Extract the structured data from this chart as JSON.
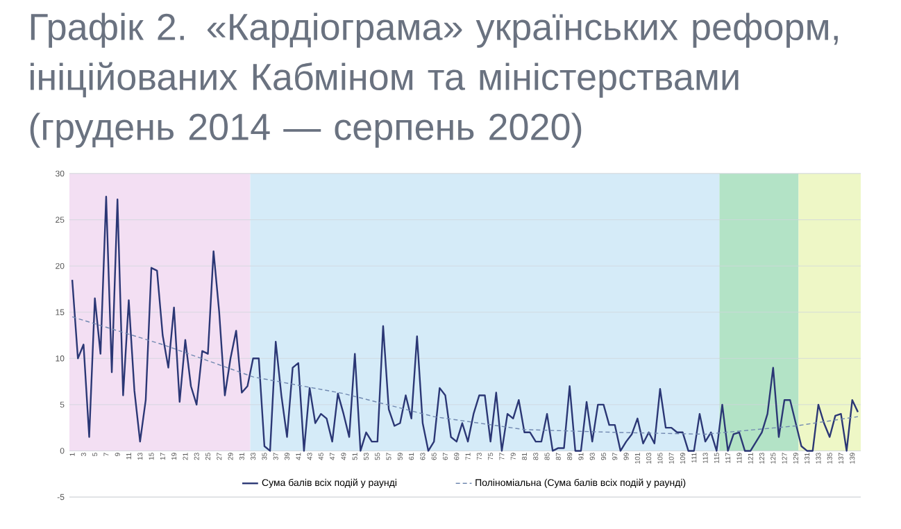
{
  "chart_data": {
    "type": "line",
    "title": "Графік 2. «Кардіограма» українських реформ, ініційованих Кабміном та міністерствами (грудень 2014 — серпень 2020)",
    "x": [
      1,
      2,
      3,
      4,
      5,
      6,
      7,
      8,
      9,
      10,
      11,
      12,
      13,
      14,
      15,
      16,
      17,
      18,
      19,
      20,
      21,
      22,
      23,
      24,
      25,
      26,
      27,
      28,
      29,
      30,
      31,
      32,
      33,
      34,
      35,
      36,
      37,
      38,
      39,
      40,
      41,
      42,
      43,
      44,
      45,
      46,
      47,
      48,
      49,
      50,
      51,
      52,
      53,
      54,
      55,
      56,
      57,
      58,
      59,
      60,
      61,
      62,
      63,
      64,
      65,
      66,
      67,
      68,
      69,
      70,
      71,
      72,
      73,
      74,
      75,
      76,
      77,
      78,
      79,
      80,
      81,
      82,
      83,
      84,
      85,
      86,
      87,
      88,
      89,
      90,
      91,
      92,
      93,
      94,
      95,
      96,
      97,
      98,
      99,
      100,
      101,
      102,
      103,
      104,
      105,
      106,
      107,
      108,
      109,
      110,
      111,
      112,
      113,
      114,
      115,
      116,
      117,
      118,
      119,
      120,
      121,
      122,
      123,
      124,
      125,
      126,
      127,
      128,
      129,
      130,
      131,
      132,
      133,
      134,
      135,
      136,
      137,
      138,
      139,
      140
    ],
    "series": [
      {
        "name": "Сума балів всіх подій у раунді",
        "color": "#2b3775",
        "values": [
          18.5,
          10,
          11.5,
          1.5,
          16.5,
          10.5,
          27.5,
          8.5,
          27.2,
          6,
          16.3,
          6.5,
          1,
          5.5,
          19.8,
          19.5,
          12.5,
          9,
          15.5,
          5.3,
          12,
          7,
          5,
          10.8,
          10.5,
          21.6,
          15,
          6,
          10,
          13,
          6.3,
          7,
          10,
          10,
          0.5,
          0,
          11.8,
          6,
          1.5,
          9,
          9.5,
          0,
          6.8,
          3,
          4,
          3.5,
          1,
          6.2,
          4,
          1.5,
          10.5,
          0,
          2,
          1,
          1,
          13.5,
          4.5,
          2.7,
          3,
          6,
          3.5,
          12.4,
          3,
          0,
          1,
          6.8,
          6,
          1.5,
          1,
          3,
          1,
          4,
          6,
          6,
          1,
          6.3,
          0,
          4,
          3.5,
          5.5,
          2,
          2,
          1,
          1,
          4,
          0,
          0.3,
          0.3,
          7,
          0,
          0,
          5.3,
          1,
          5,
          5,
          2.8,
          2.8,
          0,
          1,
          1.8,
          3.5,
          0.8,
          2,
          0.8,
          6.7,
          2.5,
          2.5,
          2,
          2,
          0,
          0,
          4,
          1,
          2,
          0,
          5,
          0,
          1.8,
          2,
          0,
          0,
          1,
          2,
          4,
          9,
          1.5,
          5.5,
          5.5,
          3,
          0.5,
          0,
          0,
          5,
          3,
          1.5,
          3.8,
          4,
          0,
          5.5,
          4.2
        ]
      },
      {
        "name": "Поліноміальна (Сума балів всіх подій у раунді)",
        "color": "#7088b0",
        "line_style": "dashed",
        "x": [
          1,
          17,
          33,
          49,
          65,
          81,
          97,
          113,
          129,
          140
        ],
        "values": [
          14.5,
          11.5,
          8,
          6.2,
          3.7,
          2.3,
          2,
          1.8,
          2.7,
          3.7
        ]
      }
    ],
    "xlim": [
      0.5,
      140.5
    ],
    "xticks": [
      1,
      3,
      5,
      7,
      9,
      11,
      13,
      15,
      17,
      19,
      21,
      23,
      25,
      27,
      29,
      31,
      33,
      35,
      37,
      39,
      41,
      43,
      45,
      47,
      49,
      51,
      53,
      55,
      57,
      59,
      61,
      63,
      65,
      67,
      69,
      71,
      73,
      75,
      77,
      79,
      81,
      83,
      85,
      87,
      89,
      91,
      93,
      95,
      97,
      99,
      101,
      103,
      105,
      107,
      109,
      111,
      113,
      115,
      117,
      119,
      121,
      123,
      125,
      127,
      129,
      131,
      133,
      135,
      137,
      139
    ],
    "ylim": [
      -5,
      30
    ],
    "yticks": [
      -5,
      0,
      5,
      10,
      15,
      20,
      25,
      30
    ],
    "bands": [
      {
        "axis": "x",
        "from": 0.5,
        "to": 32.5,
        "color": "#f3dff3"
      },
      {
        "axis": "x",
        "from": 32.5,
        "to": 115.5,
        "color": "#d5ebf8"
      },
      {
        "axis": "x",
        "from": 115.5,
        "to": 129.5,
        "color": "#b3e3c6"
      },
      {
        "axis": "x",
        "from": 129.5,
        "to": 140.5,
        "color": "#eef7c6"
      }
    ],
    "grid": "y",
    "legend": "bottom",
    "marker": "none",
    "line_style": "solid"
  }
}
